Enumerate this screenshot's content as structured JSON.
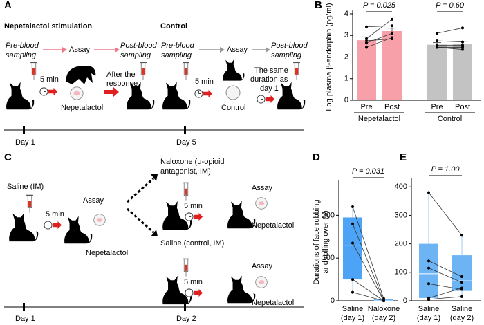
{
  "diagram_a": {
    "panel": "A",
    "left_title": "Nepetalactol stimulation",
    "right_title": "Control",
    "left": {
      "pre": [
        "Pre-blood",
        "sampling"
      ],
      "assay": "Assay",
      "post": [
        "Post-blood",
        "sampling"
      ],
      "wait": "5 min",
      "response": [
        "After the",
        "response"
      ],
      "stimulus": "Nepetalactol"
    },
    "right": {
      "pre": [
        "Pre-blood",
        "sampling"
      ],
      "assay": "Assay",
      "post": [
        "Post-blood",
        "sampling"
      ],
      "wait": "5 min",
      "stimulus": "Control",
      "duration": [
        "The same",
        "duration as",
        "day 1"
      ]
    },
    "timeline": [
      "Day 1",
      "Day 5"
    ]
  },
  "diagram_c": {
    "panel": "C",
    "saline": "Saline (IM)",
    "naloxone": [
      "Naloxone (μ-opioid",
      "antagonist, IM)"
    ],
    "control": "Saline (control, IM)",
    "waits": [
      "5 min",
      "5 min",
      "5 min"
    ],
    "assays": [
      "Assay",
      "Assay",
      "Assay"
    ],
    "stimuli": [
      "Nepetalactol",
      "Nepetalactol",
      "Nepetalactol"
    ],
    "timeline": [
      "Day 1",
      "Day 2"
    ]
  },
  "chart_data": [
    {
      "type": "bar",
      "panel": "B",
      "ylabel": "Log plasma β-endorphin (pg/ml)",
      "categories": [
        "Pre",
        "Post",
        "Pre",
        "Post"
      ],
      "groups": [
        "Nepetalactol",
        "Control"
      ],
      "values": [
        2.78,
        3.2,
        2.57,
        2.6
      ],
      "errors": [
        0.15,
        0.14,
        0.1,
        0.13
      ],
      "colors": [
        "#f7a0aa",
        "#f7a0aa",
        "#c3c3c3",
        "#c3c3c3"
      ],
      "points": [
        [
          3.4,
          2.85,
          2.75,
          2.65,
          2.45
        ],
        [
          3.45,
          3.75,
          2.85,
          3.1,
          2.9
        ],
        [
          3.1,
          2.75,
          2.55,
          2.5,
          2.45,
          2.45
        ],
        [
          3.35,
          2.7,
          2.55,
          2.5,
          2.45,
          2.35
        ]
      ],
      "annotations": [
        "P = 0.025",
        "P = 0.60"
      ],
      "ylim": [
        0,
        4
      ],
      "yticks": [
        0,
        1,
        2,
        3,
        4
      ]
    },
    {
      "type": "box",
      "panel": "D",
      "ylabel": [
        "Durations of face rubbing",
        "and rolling over (s)"
      ],
      "categories": [
        [
          "Saline",
          "(day 1)"
        ],
        [
          "Naloxone",
          "(day 2)"
        ]
      ],
      "boxes": [
        {
          "min": 20,
          "q1": 50,
          "median": 130,
          "q3": 195,
          "max": 220
        },
        {
          "min": 0,
          "q1": 0,
          "median": 0,
          "q3": 3,
          "max": 5
        }
      ],
      "points": [
        [
          220,
          180,
          135,
          50,
          20
        ],
        [
          5,
          0,
          0,
          0,
          0
        ]
      ],
      "annotations": [
        "P = 0.031"
      ],
      "color": "#4da3f5",
      "ylim": [
        0,
        275
      ],
      "yticks": [
        0,
        100,
        200
      ]
    },
    {
      "type": "box",
      "panel": "E",
      "categories": [
        [
          "Saline",
          "(day 1)"
        ],
        [
          "Saline",
          "(day 2)"
        ]
      ],
      "boxes": [
        {
          "min": 10,
          "q1": 10,
          "median": 95,
          "q3": 200,
          "max": 385
        },
        {
          "min": 10,
          "q1": 35,
          "median": 70,
          "q3": 160,
          "max": 230
        }
      ],
      "points": [
        [
          380,
          140,
          115,
          60,
          10,
          5
        ],
        [
          230,
          85,
          65,
          40,
          45,
          15
        ]
      ],
      "annotations": [
        "P = 1.00"
      ],
      "color": "#6cb4f4",
      "ylim": [
        0,
        420
      ],
      "yticks": [
        0,
        100,
        200,
        300,
        400
      ]
    }
  ]
}
